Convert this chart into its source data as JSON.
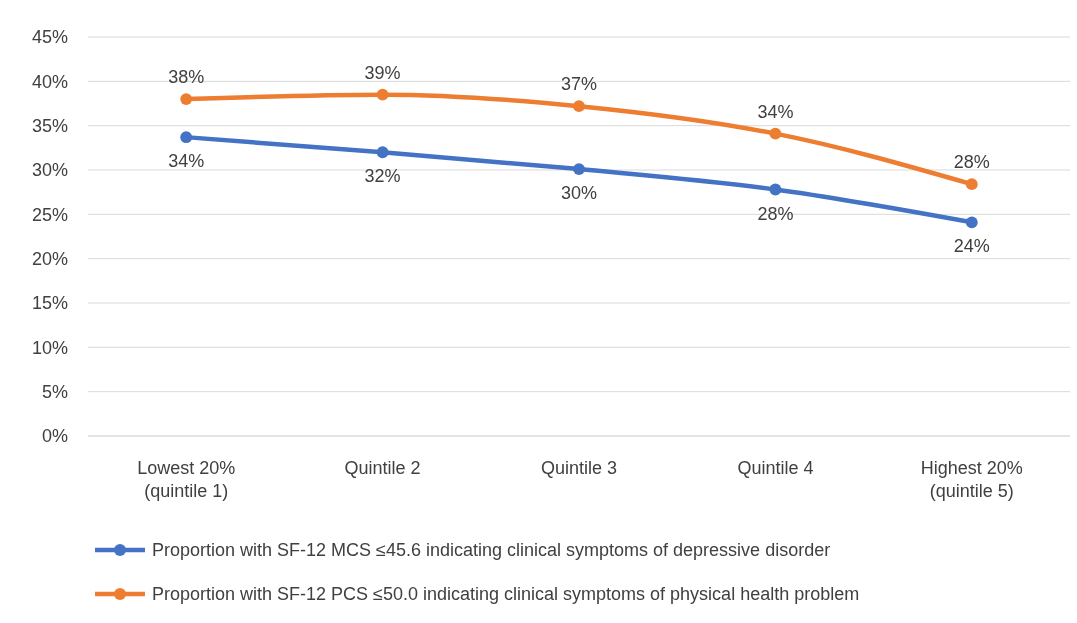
{
  "chart_data": {
    "type": "line",
    "categories": [
      "Lowest 20% (quintile 1)",
      "Quintile 2",
      "Quintile 3",
      "Quintile 4",
      "Highest 20% (quintile 5)"
    ],
    "series": [
      {
        "name": "Proportion with SF-12 MCS ≤45.6 indicating clinical symptoms of depressive disorder",
        "color": "#4472c4",
        "values": [
          33.7,
          32.0,
          30.1,
          27.8,
          24.1
        ],
        "value_labels": [
          "34%",
          "32%",
          "30%",
          "28%",
          "24%"
        ]
      },
      {
        "name": "Proportion with SF-12 PCS ≤50.0 indicating clinical symptoms of physical health problem",
        "color": "#ed7d31",
        "values": [
          38.0,
          38.5,
          37.2,
          34.1,
          28.4
        ],
        "value_labels": [
          "38%",
          "39%",
          "37%",
          "34%",
          "28%"
        ]
      }
    ],
    "ylim": [
      0,
      45
    ],
    "yticks": [
      {
        "value": 0,
        "label": "0%"
      },
      {
        "value": 5,
        "label": "5%"
      },
      {
        "value": 10,
        "label": "10%"
      },
      {
        "value": 15,
        "label": "15%"
      },
      {
        "value": 20,
        "label": "20%"
      },
      {
        "value": 25,
        "label": "25%"
      },
      {
        "value": 30,
        "label": "30%"
      },
      {
        "value": 35,
        "label": "35%"
      },
      {
        "value": 40,
        "label": "40%"
      },
      {
        "value": 45,
        "label": "45%"
      }
    ],
    "grid": "y",
    "legend": "bottom",
    "marker": "circle",
    "line_style": "solid"
  }
}
